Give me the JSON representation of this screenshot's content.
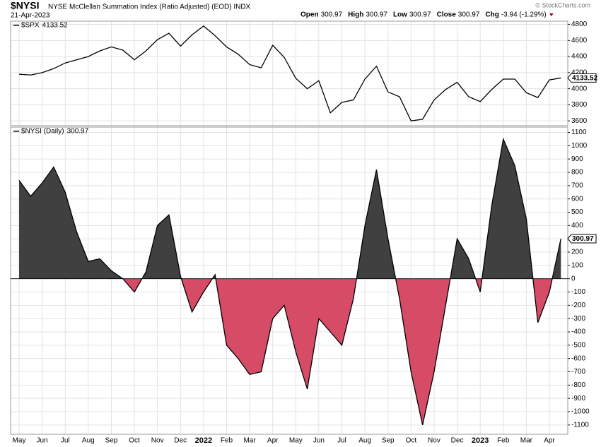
{
  "header": {
    "title": "$NYSI",
    "subtitle": "NYSE McClellan Summation Index (Ratio Adjusted) (EOD) INDX",
    "date": "21-Apr-2023",
    "quote": [
      {
        "label": "Open",
        "value": 300.97
      },
      {
        "label": "High",
        "value": 300.97
      },
      {
        "label": "Low",
        "value": 300.97
      },
      {
        "label": "Close",
        "value": 300.97
      },
      {
        "label": "Chg",
        "value": "-3.94 (-1.29%)"
      }
    ],
    "source": "© StockCharts.com"
  },
  "chart_data": [
    {
      "type": "line",
      "series": [
        {
          "name": "$SPX",
          "color": "#000000",
          "values": [
            4180,
            4170,
            4200,
            4250,
            4320,
            4360,
            4400,
            4470,
            4520,
            4480,
            4360,
            4470,
            4610,
            4690,
            4530,
            4670,
            4780,
            4660,
            4520,
            4430,
            4300,
            4260,
            4540,
            4390,
            4130,
            4000,
            4100,
            3700,
            3830,
            3860,
            4120,
            4280,
            3960,
            3900,
            3600,
            3620,
            3860,
            3990,
            4080,
            3900,
            3840,
            3990,
            4120,
            4120,
            3950,
            3890,
            4110,
            4133.52
          ]
        }
      ],
      "ylim": [
        3540,
        4840
      ],
      "yticks": [
        3600,
        3800,
        4000,
        4200,
        4400,
        4600,
        4800
      ],
      "grid": true
    },
    {
      "type": "area",
      "series": [
        {
          "name": "$NYSI (Daily)",
          "color": "#000000",
          "positive_color": "#404040",
          "negative_color": "#d64c66",
          "values": [
            740,
            620,
            720,
            840,
            650,
            350,
            130,
            150,
            60,
            0,
            -100,
            50,
            400,
            480,
            20,
            -250,
            -100,
            30,
            -500,
            -600,
            -720,
            -700,
            -300,
            -200,
            -550,
            -830,
            -300,
            -400,
            -500,
            -150,
            400,
            820,
            300,
            -150,
            -700,
            -1100,
            -700,
            -200,
            300,
            150,
            -100,
            550,
            1050,
            850,
            450,
            -330,
            -100,
            300.97
          ]
        }
      ],
      "categories": [
        "May",
        null,
        "Jun",
        null,
        "Jul",
        null,
        "Aug",
        null,
        "Sep",
        null,
        "Oct",
        null,
        "Nov",
        null,
        "Dec",
        null,
        "2022",
        null,
        "Feb",
        null,
        "Mar",
        null,
        "Apr",
        null,
        "May",
        null,
        "Jun",
        null,
        "Jul",
        null,
        "Aug",
        null,
        "Sep",
        null,
        "Oct",
        null,
        "Nov",
        null,
        "Dec",
        null,
        "2023",
        null,
        "Feb",
        null,
        "Mar",
        null,
        "Apr",
        null
      ],
      "ylim": [
        -1170,
        1140
      ],
      "yticks": [
        -1100,
        -1000,
        -900,
        -800,
        -700,
        -600,
        -500,
        -400,
        -300,
        -200,
        -100,
        0,
        100,
        200,
        300,
        400,
        500,
        600,
        700,
        800,
        900,
        1000,
        1100
      ],
      "grid": true
    }
  ]
}
